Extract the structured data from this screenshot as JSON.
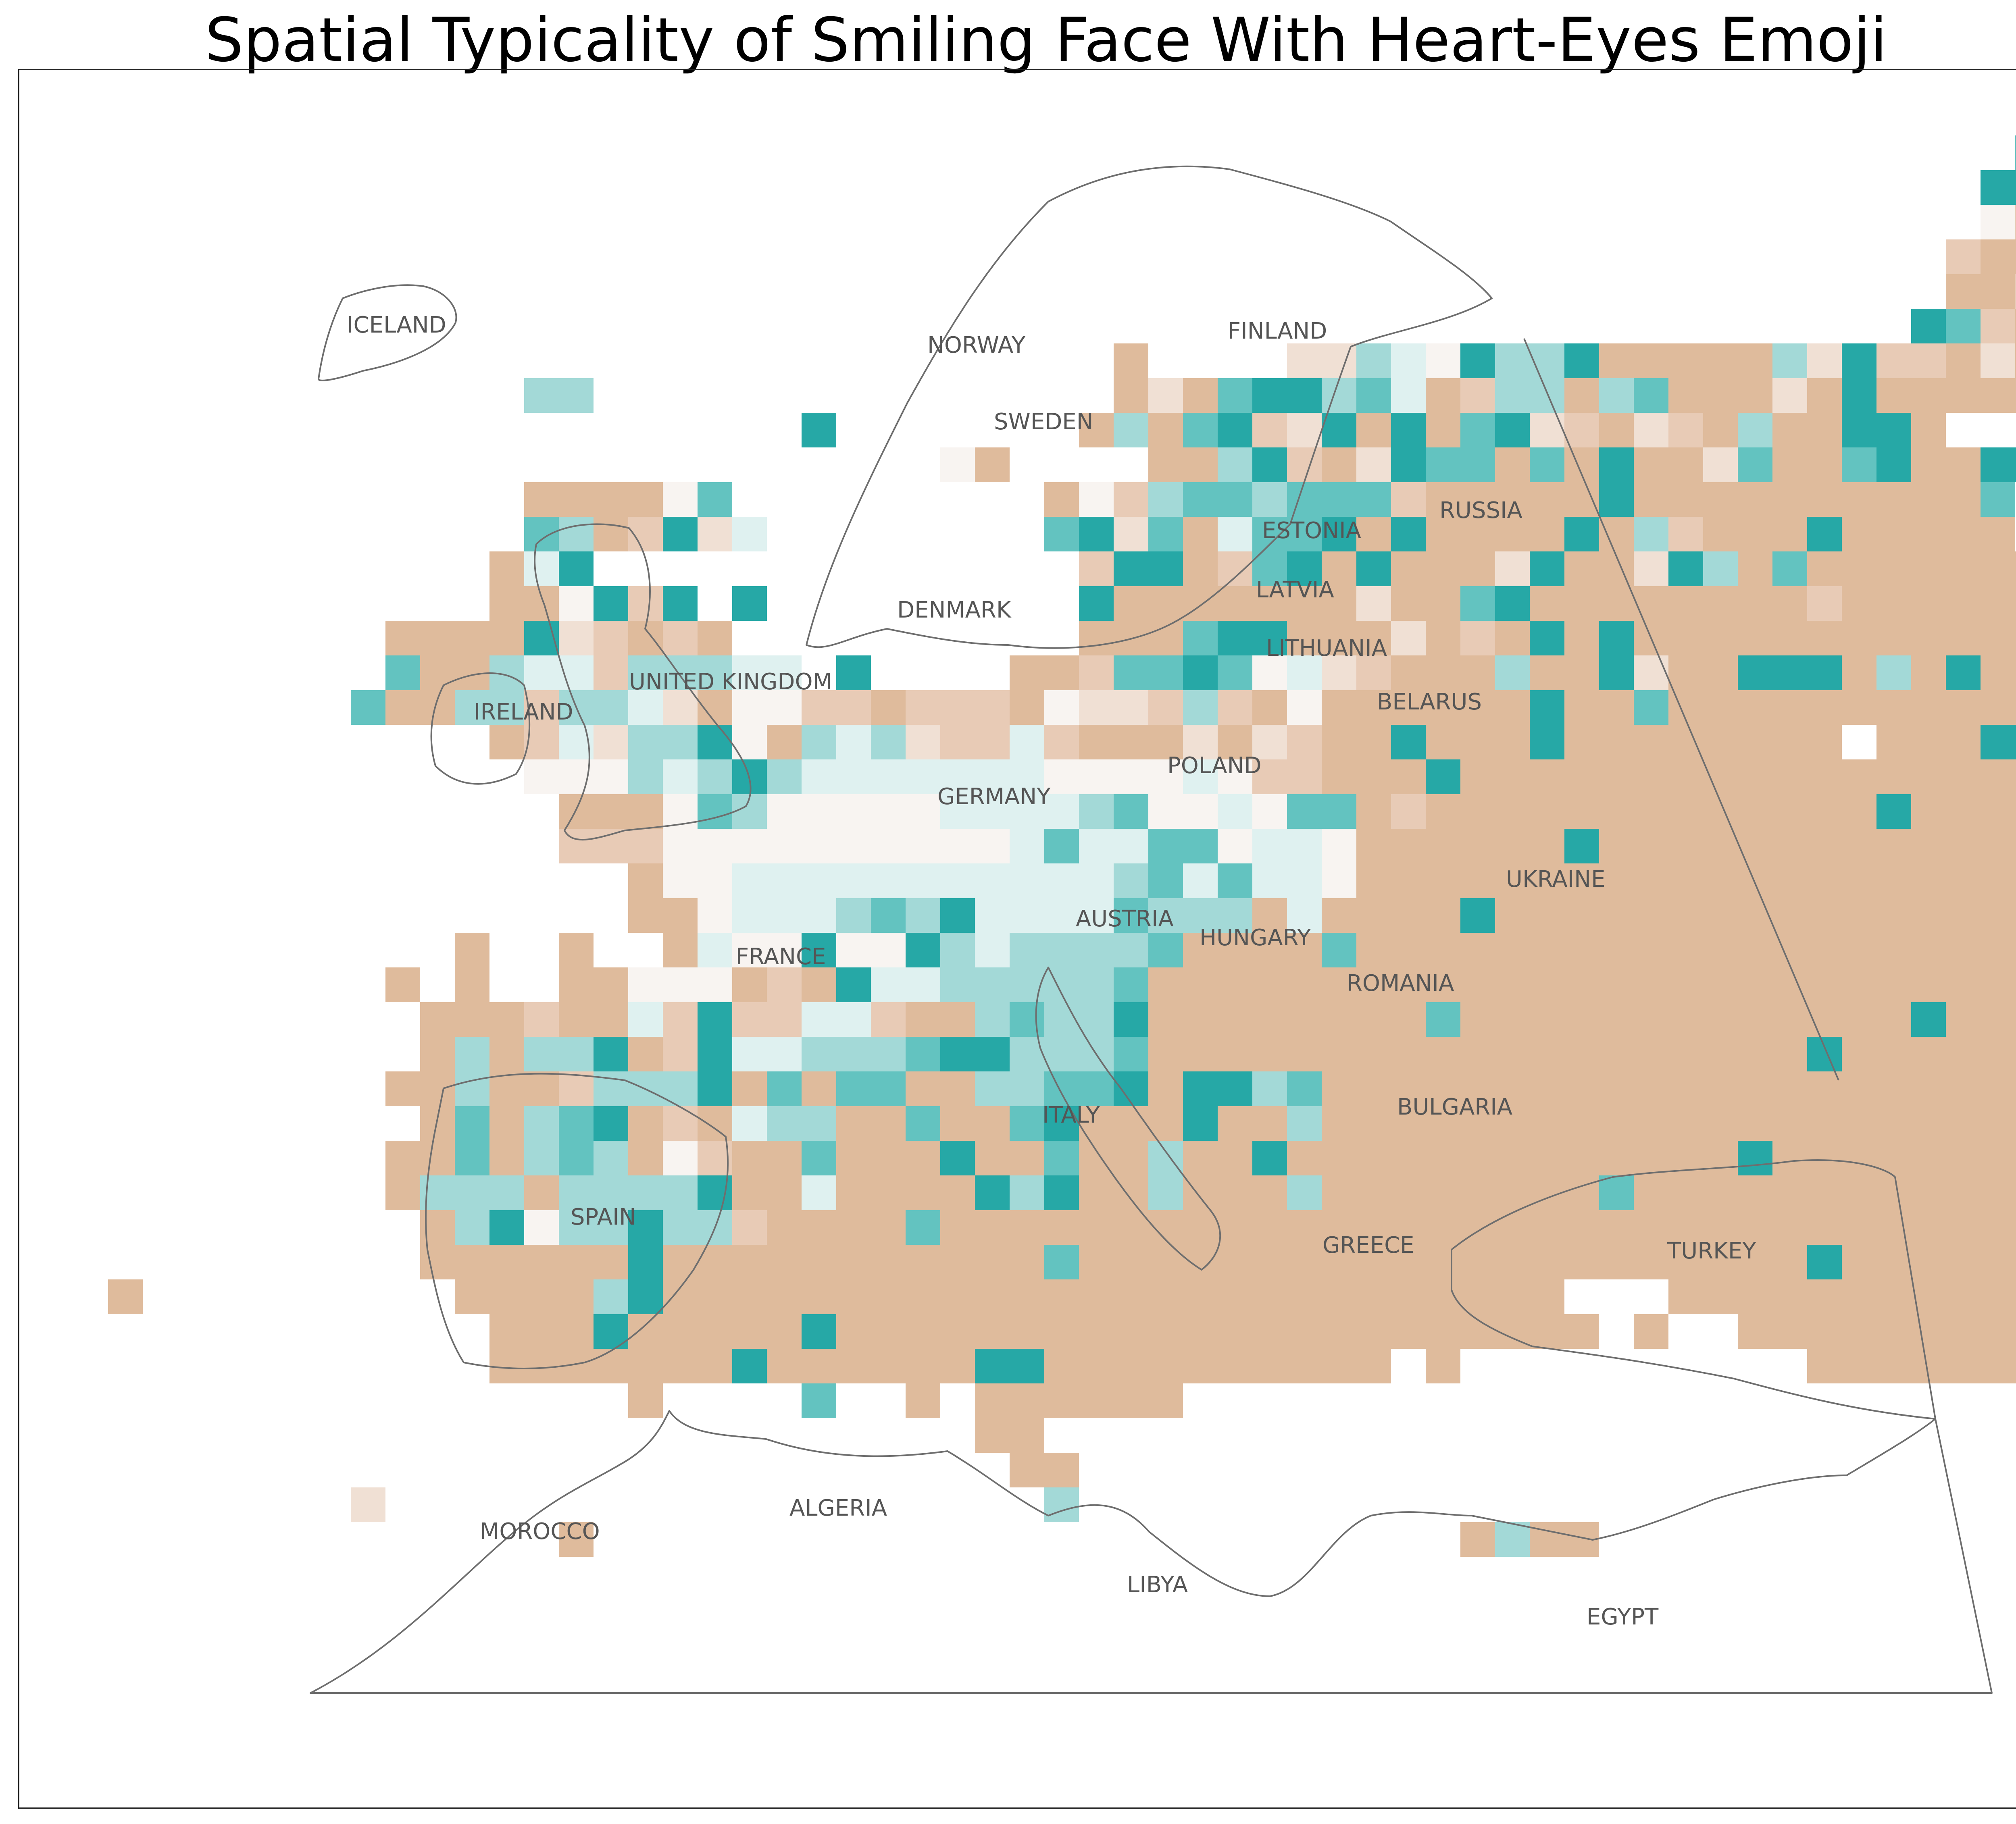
{
  "title": "Spatial Typicality of Smiling Face With Heart-Eyes Emoji",
  "legend_colors": {
    "strong_high": "#26a8a6",
    "medium_high": "#63c3c0",
    "light_high": "#a3d9d7",
    "faint_high": "#dff1f0",
    "neutral": "#f8f4f1",
    "faint_low": "#f0e0d4",
    "light_low": "#e8cbb6",
    "strong_low": "#dfbb9c"
  },
  "countries": [
    {
      "name": "ICELAND"
    },
    {
      "name": "NORWAY"
    },
    {
      "name": "FINLAND"
    },
    {
      "name": "SWEDEN"
    },
    {
      "name": "RUSSIA"
    },
    {
      "name": "ESTONIA"
    },
    {
      "name": "LATVIA"
    },
    {
      "name": "DENMARK"
    },
    {
      "name": "LITHUANIA"
    },
    {
      "name": "UNITED KINGDOM"
    },
    {
      "name": "BELARUS"
    },
    {
      "name": "IRELAND"
    },
    {
      "name": "POLAND"
    },
    {
      "name": "GERMANY"
    },
    {
      "name": "UKRAINE"
    },
    {
      "name": "AUSTRIA"
    },
    {
      "name": "HUNGARY"
    },
    {
      "name": "FRANCE"
    },
    {
      "name": "ROMANIA"
    },
    {
      "name": "BULGARIA"
    },
    {
      "name": "ITALY"
    },
    {
      "name": "SPAIN"
    },
    {
      "name": "GREECE"
    },
    {
      "name": "TURKEY"
    },
    {
      "name": "MOROCCO"
    },
    {
      "name": "ALGERIA"
    },
    {
      "name": "LIBYA"
    },
    {
      "name": "EGYPT"
    }
  ],
  "grid_rows": [
    {
      "row": 0,
      "cols": "..................................................................."
    },
    {
      "row": 1,
      "cols": "..........................................................BaBbaddA..BBBb................."
    },
    {
      "row": 2,
      "cols": ".........................................................AAAaAAcAbaBBBaB................."
    },
    {
      "row": 3,
      "cols": ".........................................................ez.ZZZaZaBAZZZZZA................"
    },
    {
      "row": 4,
      "cols": "........................................................zZZZZZZZbAcBAZZZZZ................"
    },
    {
      "row": 5,
      "cols": "........................................................ZZzZZZZZZaAaZBdAZZZZ..............."
    },
    {
      "row": 6,
      "cols": ".......................................................ABzZZZAZZZyaZZBAZaZZZ..............."
    },
    {
      "row": 7,
      "cols": "................................Z....yybdeAbcAZZZZZbyAzzZyZZZZZZZZ..............."
    },
    {
      "row": 8,
      "cols": "...............bb...............ZyZBAAcBdZzbcZbBZZZyZAZZZZZ.............."
    },
    {
      "row": 9,
      "cols": ".......................A.......ZbZBAzyAZAZBAyzZyzZbZZAAZ.............."
    },
    {
      "row": 10,
      "cols": "...........................eZ....ZZbAzZyABBZBZAZZyBZZBAZZAA.............."
    },
    {
      "row": 11,
      "cols": "...............ZZZZeB.........ZezcBBcBBBzZZZZZAZZZZZZZZZZB.............."
    },
    {
      "row": 12,
      "cols": "...............BcZzAyd........BAyBZdBBAZAZZZZAZbzZZZAZZZZZ.............."
    },
    {
      "row": 13,
      "cols": "..............ZdA..............zAAZzBAZAZZZyAZZyAbZBZZZZZZZ.............."
    },
    {
      "row": 14,
      "cols": "..............ZZeAzA.A.........AZZZZZZZyZZBAZZZZZZZZzZZZZZZ.............."
    },
    {
      "row": 15,
      "cols": "...........ZZZZAyzZzZ..........ZZZBAAZZZyZzZAZAZZZZZZZZZZZZ.............."
    },
    {
      "row": 16,
      "cols": "...........BZZbddzcccdd.A....ZZzBBAaedyzZZZcZZAyZZAAAZcZAZZ.............."
    },
    {
      "row": 17,
      "cols": "..........BZZcbzbbdyZeezzZzzzZeyyzbzZeZZZZZZAZZBZZZZZZZZZZZZ.............."
    },
    {
      "row": 18,
      "cols": "..............ZzdyccAeZcdbyzzdzZZZyZyzZZAZZZAZZZZZZZZ.ZZZAAZZZ..........."
    },
    {
      "row": 19,
      "cols": "...............eeecdbAcdddddddeeeedezzZZZAZZZZZZZZZZZZZZZZZZZZ..........."
    },
    {
      "row": 20,
      "cols": "................ZZZeBbeeeeeddddcBeedeBBZzZZZZZZZZZZZZZAZZZZZZZZAZ.........."
    },
    {
      "row": 21,
      "cols": "................zzzeeeeeeeeeedBddBBeddeZZZZZZAZZZZZZZZZZZZZZZZZZZZZZZ........"
    },
    {
      "row": 22,
      "cols": "..................ZeedddddddddddbBdBddeZZZZZZZZZZZZZZZZZZZZZZZZZZZZ........"
    },
    {
      "row": 23,
      "cols": "..................ZZedddcBbAddddBbbbZdZZZZAZZZZZZZZZZZZZZZZZZZZZ.........."
    },
    {
      "row": 24,
      "cols": ".............Z..Z..ZdeeAeeAbdcbbbBZZZZBZZZZZZZZZZZZZZZZZZZZZZZZ.........."
    },
    {
      "row": 25,
      "cols": "...........Z.Z..ZZeeeZzZAddbbbbbBZZZZZZZZZZZZZZZZZZZZZZZZZZZAZ..........."
    },
    {
      "row": 26,
      "cols": "............ZZZzZZdzAzzddzZZcBcbAZZZZZZZZBZZZZZZZZZZZZZAZZZZZ..........."
    },
    {
      "row": 27,
      "cols": "............ZbZbbAZzAddcbbaAAbbbBZZZZZZZZZZZZZZZZZZZAZZZZZZZ..........."
    },
    {
      "row": 28,
      "cols": "...........ZZbZZzcbbAZaZBBZZbbBBAZAAbBZZZZZZZZZZZZZZZZZZZZZZZ............"
    },
    {
      "row": 29,
      "cols": "............ZBZcBAZzZdcbZZaZZBAZZZAZZbZZZZZZZZZZZZZZZZZZZZZZZZ..........."
    },
    {
      "row": 30,
      "cols": "...........ZZBZbBcZezZZBZZZAZZBZZbZZAZZZZZZZZZZZZZAZZZZZZZZZZ.A........."
    },
    {
      "row": 31,
      "cols": "...........ZcccZbcccAZZdZZZZAcAZZbZZZbZZZZZZZZBZZZZZZZZZZZZZZ..........."
    },
    {
      "row": 32,
      "cols": "............ZcAeccAbbzZZZZBZZZZZZZZZZZZZZZZZZZZZZZZZZZZZZZZZZ..........."
    },
    {
      "row": 33,
      "cols": "............ZZZZZZAZZZZZZZZZZZBZZZZZZZZZZZZZZZZZZZZZAZZZZZZZZZ..........."
    },
    {
      "row": 34,
      "cols": "...Z.........ZZZZcAZZZZZZZZZZZZZZZZZZZZZZZZZZ...ZZZZZZZZZZZZZ............"
    },
    {
      "row": 35,
      "cols": "..............ZZZAZZZZZAZZZZZZZZZZZZZZZZZZZZZZ.Z..ZZZZZZZZZ..............."
    },
    {
      "row": 36,
      "cols": "..............ZZZZZZZAZZZZZZAAZZZZZZZZZZ.Z..........ZZZZZZZZ.A............."
    },
    {
      "row": 37,
      "cols": "..................Z....B..Z.ZZZZZZ...................................."
    },
    {
      "row": 38,
      "cols": "............................ZZ........................................."
    },
    {
      "row": 39,
      "cols": ".............................ZZ........................................."
    },
    {
      "row": 40,
      "cols": "..........y...................c........................................."
    },
    {
      "row": 41,
      "cols": "................Z.........................ZcZZ............................"
    }
  ]
}
